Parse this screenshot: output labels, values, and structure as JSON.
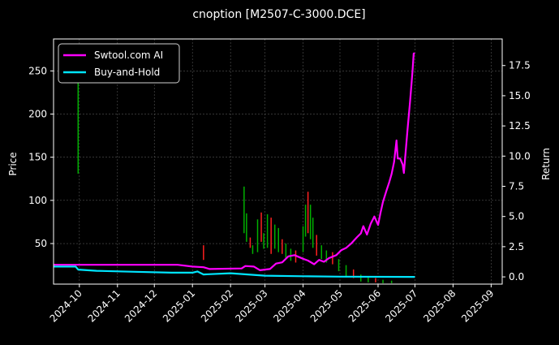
{
  "chart_data": {
    "type": "line",
    "title": "cnoption [M2507-C-3000.DCE]",
    "ylabel_left": "Price",
    "ylabel_right": "Return",
    "x_axis": {
      "type": "date",
      "range": [
        "2024-09-10",
        "2025-09-10"
      ],
      "ticks": [
        "2024-10",
        "2024-11",
        "2024-12",
        "2025-01",
        "2025-02",
        "2025-03",
        "2025-04",
        "2025-05",
        "2025-06",
        "2025-07",
        "2025-08",
        "2025-09"
      ]
    },
    "y_left": {
      "range": [
        3,
        287
      ],
      "ticks": [
        50,
        100,
        150,
        200,
        250
      ]
    },
    "y_right": {
      "range": [
        -0.6,
        19.7
      ],
      "ticks": [
        "0.0",
        "2.5",
        "5.0",
        "7.5",
        "10.0",
        "12.5",
        "15.0",
        "17.5"
      ]
    },
    "grid": true,
    "legend_position": "top-left",
    "colors": {
      "up": "#00b000",
      "down": "#ff2020",
      "strategy": "#ff00ff",
      "buyhold": "#00e5ff",
      "grid": "#555555"
    },
    "series": [
      {
        "name": "Swtool.com AI",
        "axis": "right",
        "points": [
          [
            "2024-09-10",
            1.0
          ],
          [
            "2024-12-20",
            1.0
          ],
          [
            "2025-01-01",
            0.85
          ],
          [
            "2025-01-10",
            0.8
          ],
          [
            "2025-01-15",
            0.65
          ],
          [
            "2025-02-10",
            0.7
          ],
          [
            "2025-02-13",
            0.9
          ],
          [
            "2025-02-20",
            0.85
          ],
          [
            "2025-02-25",
            0.55
          ],
          [
            "2025-03-05",
            0.65
          ],
          [
            "2025-03-10",
            1.1
          ],
          [
            "2025-03-15",
            1.2
          ],
          [
            "2025-03-20",
            1.7
          ],
          [
            "2025-03-25",
            1.8
          ],
          [
            "2025-04-01",
            1.5
          ],
          [
            "2025-04-05",
            1.35
          ],
          [
            "2025-04-10",
            1.05
          ],
          [
            "2025-04-14",
            1.4
          ],
          [
            "2025-04-18",
            1.25
          ],
          [
            "2025-04-22",
            1.55
          ],
          [
            "2025-04-28",
            1.8
          ],
          [
            "2025-05-02",
            2.2
          ],
          [
            "2025-05-06",
            2.4
          ],
          [
            "2025-05-10",
            2.75
          ],
          [
            "2025-05-15",
            3.3
          ],
          [
            "2025-05-18",
            3.6
          ],
          [
            "2025-05-20",
            4.2
          ],
          [
            "2025-05-23",
            3.5
          ],
          [
            "2025-05-26",
            4.4
          ],
          [
            "2025-05-29",
            5.0
          ],
          [
            "2025-06-01",
            4.3
          ],
          [
            "2025-06-03",
            5.3
          ],
          [
            "2025-06-05",
            6.2
          ],
          [
            "2025-06-08",
            7.2
          ],
          [
            "2025-06-10",
            7.8
          ],
          [
            "2025-06-12",
            8.5
          ],
          [
            "2025-06-14",
            9.5
          ],
          [
            "2025-06-16",
            11.3
          ],
          [
            "2025-06-17",
            9.8
          ],
          [
            "2025-06-19",
            9.8
          ],
          [
            "2025-06-21",
            9.3
          ],
          [
            "2025-06-22",
            8.6
          ],
          [
            "2025-06-23",
            9.8
          ],
          [
            "2025-06-25",
            12.2
          ],
          [
            "2025-06-27",
            14.5
          ],
          [
            "2025-06-29",
            17.0
          ],
          [
            "2025-06-30",
            18.5
          ],
          [
            "2025-07-01",
            18.5
          ]
        ]
      },
      {
        "name": "Buy-and-Hold",
        "axis": "right",
        "points": [
          [
            "2024-09-10",
            0.85
          ],
          [
            "2024-09-28",
            0.85
          ],
          [
            "2024-09-30",
            0.6
          ],
          [
            "2024-10-15",
            0.5
          ],
          [
            "2024-11-15",
            0.42
          ],
          [
            "2024-12-15",
            0.35
          ],
          [
            "2025-01-01",
            0.35
          ],
          [
            "2025-01-05",
            0.45
          ],
          [
            "2025-01-10",
            0.2
          ],
          [
            "2025-02-01",
            0.3
          ],
          [
            "2025-03-01",
            0.1
          ],
          [
            "2025-04-01",
            0.05
          ],
          [
            "2025-05-01",
            0.02
          ],
          [
            "2025-07-01",
            0.0
          ]
        ]
      }
    ],
    "ohlc": [
      [
        "2024-09-30",
        255,
        131
      ],
      [
        "2025-01-10",
        48,
        31
      ],
      [
        "2025-02-12",
        116,
        62
      ],
      [
        "2025-02-14",
        85,
        52
      ],
      [
        "2025-02-17",
        57,
        45
      ],
      [
        "2025-02-19",
        48,
        38
      ],
      [
        "2025-02-23",
        78,
        40
      ],
      [
        "2025-02-26",
        86,
        52
      ],
      [
        "2025-02-28",
        62,
        44
      ],
      [
        "2025-03-03",
        84,
        45
      ],
      [
        "2025-03-06",
        80,
        38
      ],
      [
        "2025-03-09",
        72,
        44
      ],
      [
        "2025-03-12",
        68,
        40
      ],
      [
        "2025-03-15",
        55,
        38
      ],
      [
        "2025-03-18",
        50,
        32
      ],
      [
        "2025-03-22",
        44,
        30
      ],
      [
        "2025-03-26",
        42,
        28
      ],
      [
        "2025-04-01",
        70,
        40
      ],
      [
        "2025-04-03",
        95,
        58
      ],
      [
        "2025-04-05",
        110,
        62
      ],
      [
        "2025-04-07",
        95,
        55
      ],
      [
        "2025-04-09",
        80,
        45
      ],
      [
        "2025-04-12",
        60,
        36
      ],
      [
        "2025-04-16",
        48,
        32
      ],
      [
        "2025-04-20",
        42,
        28
      ],
      [
        "2025-04-25",
        40,
        26
      ],
      [
        "2025-04-30",
        32,
        18
      ],
      [
        "2025-05-06",
        25,
        12
      ],
      [
        "2025-05-12",
        20,
        10
      ],
      [
        "2025-05-18",
        14,
        6
      ],
      [
        "2025-05-24",
        12,
        5
      ],
      [
        "2025-05-30",
        10,
        5
      ],
      [
        "2025-06-05",
        8,
        4
      ],
      [
        "2025-06-12",
        7,
        4
      ]
    ]
  }
}
